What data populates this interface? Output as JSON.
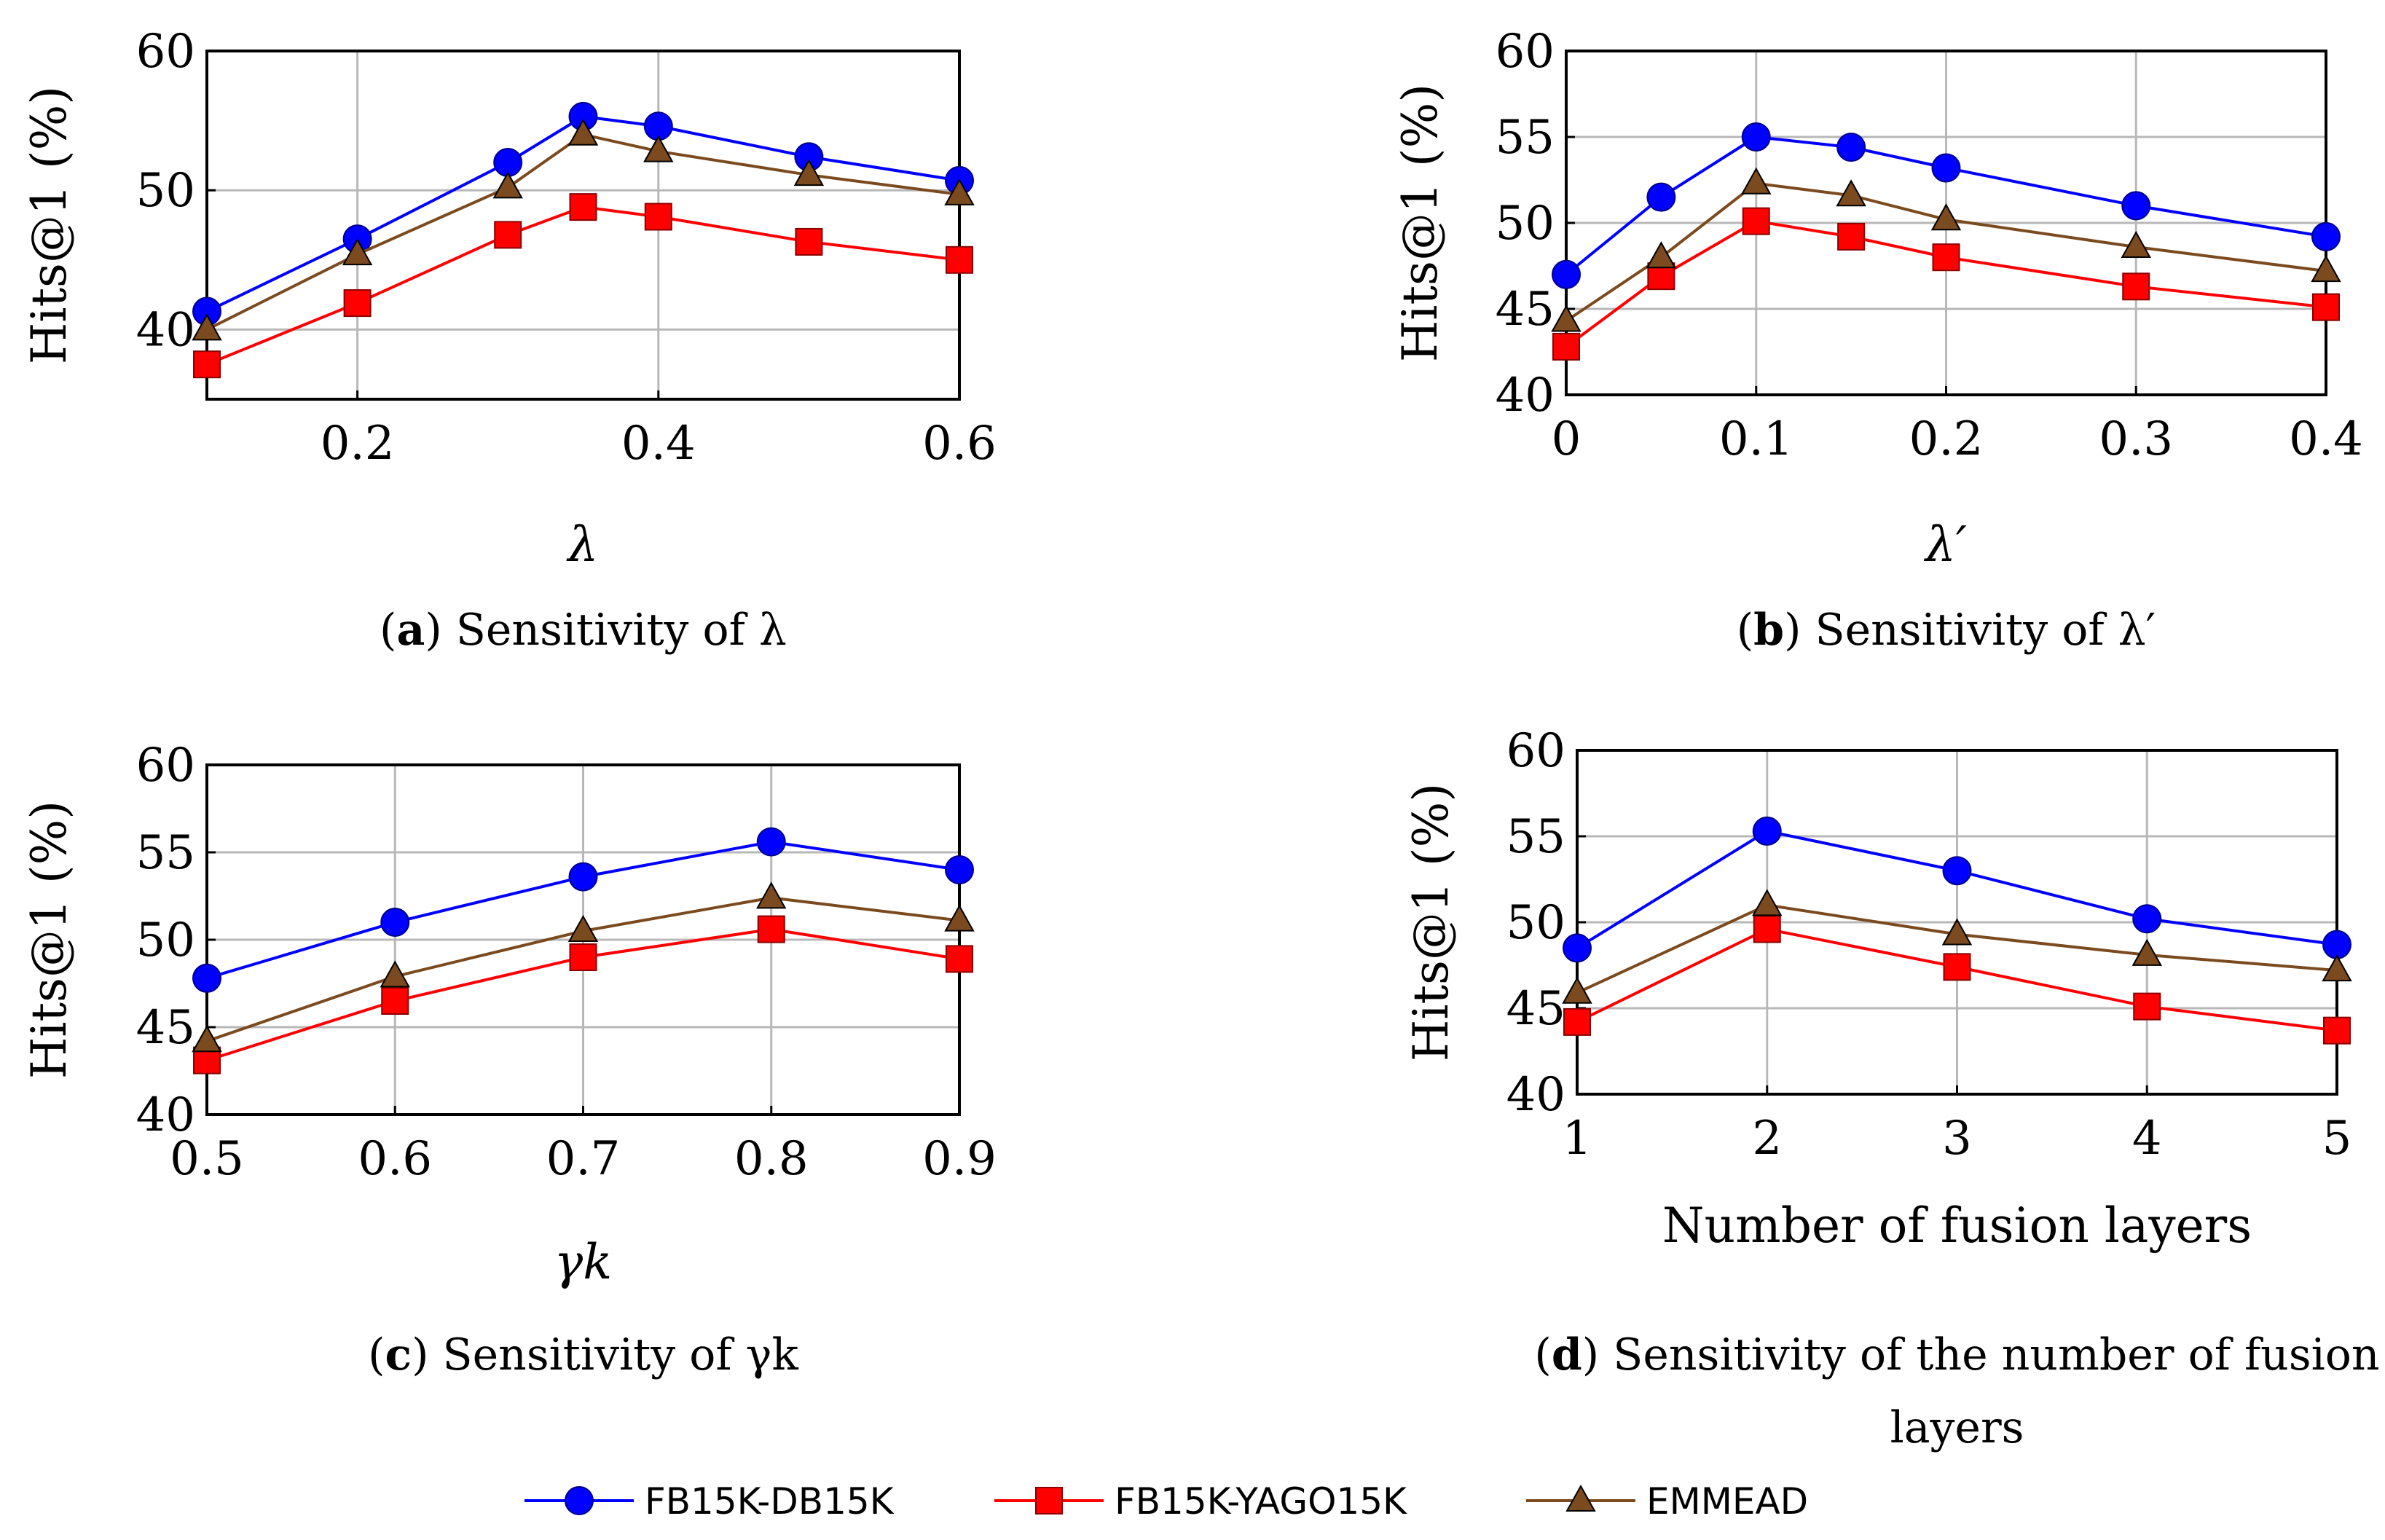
{
  "series_styles": [
    {
      "name": "FB15K-DB15K",
      "color": "#0000ff",
      "marker": "circle"
    },
    {
      "name": "FB15K-YAGO15K",
      "color": "#ff0000",
      "marker": "square"
    },
    {
      "name": "EMMEAD",
      "color": "#7b4a1e",
      "marker": "triangle"
    }
  ],
  "legend": {
    "items": [
      "FB15K-DB15K",
      "FB15K-YAGO15K",
      "EMMEAD"
    ]
  },
  "chart_data": [
    {
      "type": "line",
      "caption_letter": "a",
      "caption_text": "Sensitivity of λ",
      "xlabel": "λ",
      "ylabel": "Hits@1 (%)",
      "x": [
        0.1,
        0.2,
        0.3,
        0.35,
        0.4,
        0.5,
        0.6
      ],
      "xlim": [
        0.1,
        0.6
      ],
      "ylim": [
        35,
        60
      ],
      "xticks": [
        0.2,
        0.4,
        0.6
      ],
      "xtick_labels": [
        "0.2",
        "0.4",
        "0.6"
      ],
      "yticks": [
        40,
        50,
        60
      ],
      "ytick_labels": [
        "40",
        "50",
        "60"
      ],
      "series": [
        {
          "name": "FB15K-DB15K",
          "values": [
            41.3,
            46.5,
            52.0,
            55.3,
            54.6,
            52.4,
            50.7
          ]
        },
        {
          "name": "FB15K-YAGO15K",
          "values": [
            37.5,
            41.9,
            46.8,
            48.8,
            48.1,
            46.3,
            45.0
          ]
        },
        {
          "name": "EMMEAD",
          "values": [
            40.0,
            45.4,
            50.2,
            54.0,
            52.8,
            51.1,
            49.7
          ]
        }
      ]
    },
    {
      "type": "line",
      "caption_letter": "b",
      "caption_text": "Sensitivity of λ′",
      "xlabel": "λ′",
      "ylabel": "Hits@1 (%)",
      "x": [
        0,
        0.05,
        0.1,
        0.15,
        0.2,
        0.3,
        0.4
      ],
      "xlim": [
        0,
        0.4
      ],
      "ylim": [
        40,
        60
      ],
      "xticks": [
        0,
        0.1,
        0.2,
        0.3,
        0.4
      ],
      "xtick_labels": [
        "0",
        "0.1",
        "0.2",
        "0.3",
        "0.4"
      ],
      "yticks": [
        40,
        45,
        50,
        55,
        60
      ],
      "ytick_labels": [
        "40",
        "45",
        "50",
        "55",
        "60"
      ],
      "series": [
        {
          "name": "FB15K-DB15K",
          "values": [
            47.0,
            51.5,
            55.0,
            54.4,
            53.2,
            51.0,
            49.2
          ]
        },
        {
          "name": "FB15K-YAGO15K",
          "values": [
            42.8,
            46.9,
            50.1,
            49.2,
            48.0,
            46.3,
            45.1
          ]
        },
        {
          "name": "EMMEAD",
          "values": [
            44.3,
            48.0,
            52.3,
            51.6,
            50.2,
            48.6,
            47.2
          ]
        }
      ]
    },
    {
      "type": "line",
      "caption_letter": "c",
      "caption_text": "Sensitivity of γk",
      "xlabel": "γk",
      "ylabel": "Hits@1 (%)",
      "x": [
        0.5,
        0.6,
        0.7,
        0.8,
        0.9
      ],
      "xlim": [
        0.5,
        0.9
      ],
      "ylim": [
        40,
        60
      ],
      "xticks": [
        0.5,
        0.6,
        0.7,
        0.8,
        0.9
      ],
      "xtick_labels": [
        "0.5",
        "0.6",
        "0.7",
        "0.8",
        "0.9"
      ],
      "yticks": [
        40,
        45,
        50,
        55,
        60
      ],
      "ytick_labels": [
        "40",
        "45",
        "50",
        "55",
        "60"
      ],
      "series": [
        {
          "name": "FB15K-DB15K",
          "values": [
            47.8,
            51.0,
            53.6,
            55.6,
            54.0
          ]
        },
        {
          "name": "FB15K-YAGO15K",
          "values": [
            43.1,
            46.5,
            49.0,
            50.6,
            48.9
          ]
        },
        {
          "name": "EMMEAD",
          "values": [
            44.2,
            47.9,
            50.5,
            52.4,
            51.1
          ]
        }
      ]
    },
    {
      "type": "line",
      "caption_letter": "d",
      "caption_text": "Sensitivity of the number of fusion",
      "caption_text_line2": "layers",
      "xlabel": "Number of fusion layers",
      "ylabel": "Hits@1 (%)",
      "x": [
        1,
        2,
        3,
        4,
        5
      ],
      "xlim": [
        1,
        5
      ],
      "ylim": [
        40,
        60
      ],
      "xticks": [
        1,
        2,
        3,
        4,
        5
      ],
      "xtick_labels": [
        "1",
        "2",
        "3",
        "4",
        "5"
      ],
      "yticks": [
        40,
        45,
        50,
        55,
        60
      ],
      "ytick_labels": [
        "40",
        "45",
        "50",
        "55",
        "60"
      ],
      "series": [
        {
          "name": "FB15K-DB15K",
          "values": [
            48.5,
            55.3,
            53.0,
            50.2,
            48.7
          ]
        },
        {
          "name": "FB15K-YAGO15K",
          "values": [
            44.2,
            49.6,
            47.4,
            45.1,
            43.7
          ]
        },
        {
          "name": "EMMEAD",
          "values": [
            45.9,
            51.0,
            49.3,
            48.1,
            47.2
          ]
        }
      ]
    }
  ]
}
